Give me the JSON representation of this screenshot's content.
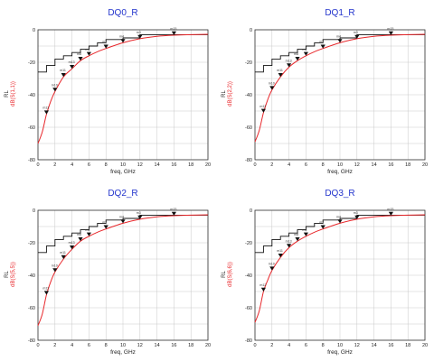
{
  "chart_data": [
    {
      "type": "line",
      "title": "DQ0_R",
      "xlabel": "freq, GHz",
      "ylabel_top": "RL",
      "ylabel_bottom": "dB(S(1,1))",
      "xlim": [
        0,
        20
      ],
      "ylim": [
        -80,
        0
      ],
      "xticks": [
        "0",
        "2",
        "4",
        "6",
        "8",
        "10",
        "12",
        "14",
        "16",
        "18",
        "20"
      ],
      "yticks": [
        "0",
        "-20",
        "-40",
        "-60",
        "-80"
      ],
      "grid": true,
      "series": [
        {
          "name": "RL",
          "style": "step",
          "color": "#111111",
          "x": [
            0,
            1,
            1,
            2,
            2,
            3,
            3,
            4,
            4,
            5,
            5,
            6,
            6,
            7,
            7,
            8,
            8,
            10,
            10,
            12,
            12,
            20
          ],
          "y": [
            -26,
            -26,
            -22,
            -22,
            -18,
            -18,
            -16,
            -16,
            -14,
            -14,
            -12,
            -12,
            -10,
            -10,
            -8,
            -8,
            -6,
            -6,
            -5,
            -5,
            -3,
            -3
          ]
        },
        {
          "name": "dB(S(1,1))",
          "style": "smooth",
          "color": "#e8262a",
          "x": [
            0,
            0.5,
            1,
            1.5,
            2,
            3,
            4,
            5,
            6,
            7,
            8,
            10,
            12,
            14,
            16,
            18,
            20
          ],
          "y": [
            -70,
            -63,
            -52,
            -44,
            -38,
            -29,
            -24,
            -19,
            -16,
            -13.5,
            -11.5,
            -8,
            -5.5,
            -4,
            -3.3,
            -3.0,
            -2.8
          ]
        }
      ],
      "markers": [
        {
          "label": "m12",
          "x": 1,
          "y": -52
        },
        {
          "label": "m10",
          "x": 2,
          "y": -38
        },
        {
          "label": "m11",
          "x": 3,
          "y": -29
        },
        {
          "label": "m13",
          "x": 4,
          "y": -24
        },
        {
          "label": "m8",
          "x": 5,
          "y": -19
        },
        {
          "label": "m6",
          "x": 6,
          "y": -16
        },
        {
          "label": "m7",
          "x": 8,
          "y": -11.5
        },
        {
          "label": "m4",
          "x": 10,
          "y": -8
        },
        {
          "label": "m3",
          "x": 12,
          "y": -5.5
        },
        {
          "label": "m15",
          "x": 16,
          "y": -3.3
        }
      ]
    },
    {
      "type": "line",
      "title": "DQ1_R",
      "xlabel": "freq, GHz",
      "ylabel_top": "RL",
      "ylabel_bottom": "dB(S(2,2))",
      "xlim": [
        0,
        20
      ],
      "ylim": [
        -80,
        0
      ],
      "xticks": [
        "0",
        "2",
        "4",
        "6",
        "8",
        "10",
        "12",
        "14",
        "16",
        "18",
        "20"
      ],
      "yticks": [
        "0",
        "-20",
        "-40",
        "-60",
        "-80"
      ],
      "grid": true,
      "series": [
        {
          "name": "RL",
          "style": "step",
          "color": "#111111",
          "x": [
            0,
            1,
            1,
            2,
            2,
            3,
            3,
            4,
            4,
            5,
            5,
            6,
            6,
            7,
            7,
            8,
            8,
            10,
            10,
            12,
            12,
            20
          ],
          "y": [
            -26,
            -26,
            -22,
            -22,
            -18,
            -18,
            -16,
            -16,
            -14,
            -14,
            -12,
            -12,
            -10,
            -10,
            -8,
            -8,
            -6,
            -6,
            -5,
            -5,
            -3,
            -3
          ]
        },
        {
          "name": "dB(S(2,2))",
          "style": "smooth",
          "color": "#e8262a",
          "x": [
            0,
            0.5,
            1,
            1.5,
            2,
            3,
            4,
            5,
            6,
            7,
            8,
            10,
            12,
            14,
            16,
            18,
            20
          ],
          "y": [
            -69,
            -62,
            -51,
            -43,
            -37,
            -29,
            -23,
            -19,
            -16,
            -13.5,
            -11.5,
            -8,
            -5.5,
            -4,
            -3.3,
            -3.0,
            -2.8
          ]
        }
      ],
      "markers": [
        {
          "label": "m12",
          "x": 1,
          "y": -51
        },
        {
          "label": "m10",
          "x": 2,
          "y": -37
        },
        {
          "label": "m11",
          "x": 3,
          "y": -29
        },
        {
          "label": "m13",
          "x": 4,
          "y": -23
        },
        {
          "label": "m8",
          "x": 5,
          "y": -19
        },
        {
          "label": "m6",
          "x": 6,
          "y": -16
        },
        {
          "label": "m7",
          "x": 8,
          "y": -11.5
        },
        {
          "label": "m4",
          "x": 10,
          "y": -8
        },
        {
          "label": "m3",
          "x": 12,
          "y": -5.5
        },
        {
          "label": "m15",
          "x": 16,
          "y": -3.3
        }
      ]
    },
    {
      "type": "line",
      "title": "DQ2_R",
      "xlabel": "freq, GHz",
      "ylabel_top": "RL",
      "ylabel_bottom": "dB(S(5,5))",
      "xlim": [
        0,
        20
      ],
      "ylim": [
        -80,
        0
      ],
      "xticks": [
        "0",
        "2",
        "4",
        "6",
        "8",
        "10",
        "12",
        "14",
        "16",
        "18",
        "20"
      ],
      "yticks": [
        "0",
        "-20",
        "-40",
        "-60",
        "-80"
      ],
      "grid": true,
      "series": [
        {
          "name": "RL",
          "style": "step",
          "color": "#111111",
          "x": [
            0,
            1,
            1,
            2,
            2,
            3,
            3,
            4,
            4,
            5,
            5,
            6,
            6,
            7,
            7,
            8,
            8,
            10,
            10,
            12,
            12,
            20
          ],
          "y": [
            -26,
            -26,
            -22,
            -22,
            -18,
            -18,
            -16,
            -16,
            -14,
            -14,
            -12,
            -12,
            -10,
            -10,
            -8,
            -8,
            -6,
            -6,
            -5,
            -5,
            -3,
            -3
          ]
        },
        {
          "name": "dB(S(5,5))",
          "style": "smooth",
          "color": "#e8262a",
          "x": [
            0,
            0.5,
            1,
            1.5,
            2,
            3,
            4,
            5,
            6,
            7,
            8,
            10,
            12,
            14,
            16,
            18,
            20
          ],
          "y": [
            -71,
            -64,
            -52,
            -44,
            -38,
            -30,
            -24,
            -19,
            -16,
            -13.5,
            -11.5,
            -8,
            -5.5,
            -4,
            -3.3,
            -3.0,
            -2.8
          ]
        }
      ],
      "markers": [
        {
          "label": "m12",
          "x": 1,
          "y": -52
        },
        {
          "label": "m10",
          "x": 2,
          "y": -38
        },
        {
          "label": "m11",
          "x": 3,
          "y": -30
        },
        {
          "label": "m13",
          "x": 4,
          "y": -24
        },
        {
          "label": "m8",
          "x": 5,
          "y": -19
        },
        {
          "label": "m6",
          "x": 6,
          "y": -16
        },
        {
          "label": "m7",
          "x": 8,
          "y": -11.5
        },
        {
          "label": "m4",
          "x": 10,
          "y": -8
        },
        {
          "label": "m3",
          "x": 12,
          "y": -5.5
        },
        {
          "label": "m15",
          "x": 16,
          "y": -3.3
        }
      ]
    },
    {
      "type": "line",
      "title": "DQ3_R",
      "xlabel": "freq, GHz",
      "ylabel_top": "RL",
      "ylabel_bottom": "dB(S(6,6))",
      "xlim": [
        0,
        20
      ],
      "ylim": [
        -80,
        0
      ],
      "xticks": [
        "0",
        "2",
        "4",
        "6",
        "8",
        "10",
        "12",
        "14",
        "16",
        "18",
        "20"
      ],
      "yticks": [
        "0",
        "-20",
        "-40",
        "-60",
        "-80"
      ],
      "grid": true,
      "series": [
        {
          "name": "RL",
          "style": "step",
          "color": "#111111",
          "x": [
            0,
            1,
            1,
            2,
            2,
            3,
            3,
            4,
            4,
            5,
            5,
            6,
            6,
            7,
            7,
            8,
            8,
            10,
            10,
            12,
            12,
            20
          ],
          "y": [
            -26,
            -26,
            -22,
            -22,
            -18,
            -18,
            -16,
            -16,
            -14,
            -14,
            -12,
            -12,
            -10,
            -10,
            -8,
            -8,
            -6,
            -6,
            -5,
            -5,
            -3,
            -3
          ]
        },
        {
          "name": "dB(S(6,6))",
          "style": "smooth",
          "color": "#e8262a",
          "x": [
            0,
            0.5,
            1,
            1.5,
            2,
            3,
            4,
            5,
            6,
            7,
            8,
            10,
            12,
            14,
            16,
            18,
            20
          ],
          "y": [
            -69,
            -62,
            -50,
            -43,
            -37,
            -29,
            -23,
            -19,
            -16,
            -13.5,
            -11.5,
            -8,
            -5.5,
            -4,
            -3.3,
            -3.0,
            -2.8
          ]
        }
      ],
      "markers": [
        {
          "label": "m12",
          "x": 1,
          "y": -50
        },
        {
          "label": "m10",
          "x": 2,
          "y": -37
        },
        {
          "label": "m11",
          "x": 3,
          "y": -29
        },
        {
          "label": "m13",
          "x": 4,
          "y": -23
        },
        {
          "label": "m8",
          "x": 5,
          "y": -19
        },
        {
          "label": "m6",
          "x": 6,
          "y": -16
        },
        {
          "label": "m7",
          "x": 8,
          "y": -11.5
        },
        {
          "label": "m4",
          "x": 10,
          "y": -8
        },
        {
          "label": "m3",
          "x": 12,
          "y": -5.5
        },
        {
          "label": "m15",
          "x": 16,
          "y": -3.3
        }
      ]
    }
  ]
}
